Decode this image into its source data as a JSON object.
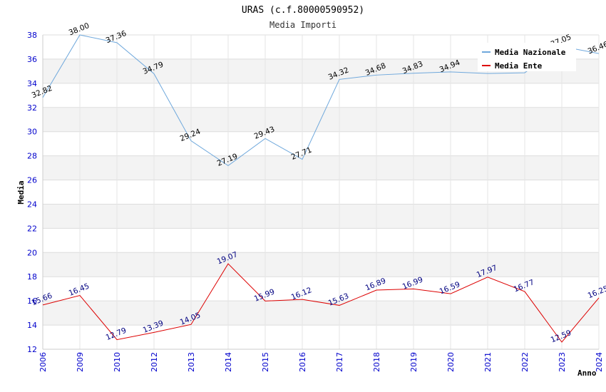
{
  "chart_data": {
    "type": "line",
    "title": "URAS (c.f.80000590952)",
    "subtitle": "Media Importi",
    "xlabel": "Anno",
    "ylabel": "Media",
    "ylim": [
      12,
      38
    ],
    "yticks": [
      12,
      14,
      16,
      18,
      20,
      22,
      24,
      26,
      28,
      30,
      32,
      34,
      36,
      38
    ],
    "categories": [
      "2006",
      "2009",
      "2010",
      "2012",
      "2013",
      "2014",
      "2015",
      "2016",
      "2017",
      "2018",
      "2019",
      "2020",
      "2021",
      "2022",
      "2023",
      "2024"
    ],
    "grid": true,
    "legend_position": "top-right",
    "series": [
      {
        "name": "Media Nazionale",
        "color": "#6fa8dc",
        "values": [
          32.82,
          38.0,
          37.36,
          34.79,
          29.24,
          27.19,
          29.43,
          27.71,
          34.32,
          34.68,
          34.83,
          34.94,
          34.81,
          34.87,
          37.05,
          36.46
        ],
        "labels": [
          "32.82",
          "38.00",
          "37.36",
          "34.79",
          "29.24",
          "27.19",
          "29.43",
          "27.71",
          "34.32",
          "34.68",
          "34.83",
          "34.94",
          "",
          "",
          "37.05",
          "36.46"
        ]
      },
      {
        "name": "Media Ente",
        "color": "#dd0000",
        "values": [
          15.66,
          16.45,
          12.79,
          13.39,
          14.05,
          19.07,
          15.99,
          16.12,
          15.63,
          16.89,
          16.99,
          16.59,
          17.97,
          16.77,
          12.59,
          16.25
        ],
        "labels": [
          "15.66",
          "16.45",
          "12.79",
          "13.39",
          "14.05",
          "19.07",
          "15.99",
          "16.12",
          "15.63",
          "16.89",
          "16.99",
          "16.59",
          "17.97",
          "16.77",
          "12.59",
          "16.25"
        ]
      }
    ]
  }
}
